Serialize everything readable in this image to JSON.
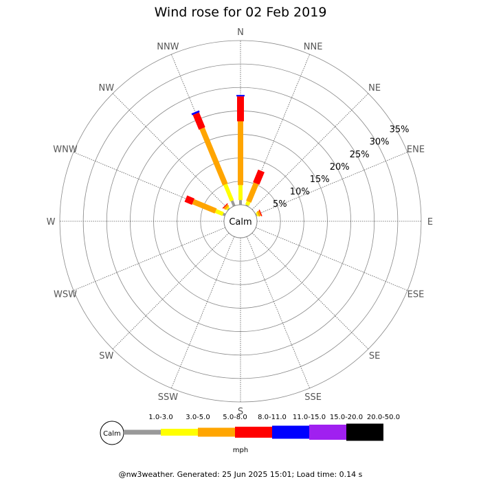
{
  "chart_data": {
    "type": "wind-rose",
    "title": "Wind rose for 02 Feb 2019",
    "directions": [
      "N",
      "NNE",
      "NE",
      "ENE",
      "E",
      "ESE",
      "SE",
      "SSE",
      "S",
      "SSW",
      "SW",
      "WSW",
      "W",
      "WNW",
      "NW",
      "NNW"
    ],
    "radial_ticks": [
      "5%",
      "10%",
      "15%",
      "20%",
      "25%",
      "30%",
      "35%"
    ],
    "radial_max": 35,
    "calm_label": "Calm",
    "bins": [
      {
        "range": "1.0-3.0",
        "color": "#999999"
      },
      {
        "range": "3.0-5.0",
        "color": "#ffff00"
      },
      {
        "range": "5.0-8.0",
        "color": "#ffa500"
      },
      {
        "range": "8.0-11.0",
        "color": "#ff0000"
      },
      {
        "range": "11.0-15.0",
        "color": "#0000ff"
      },
      {
        "range": "15.0-20.0",
        "color": "#a020f0"
      },
      {
        "range": "20.0-50.0",
        "color": "#000000"
      }
    ],
    "units": "mph",
    "series": [
      {
        "direction": "N",
        "values": [
          1.0,
          3.2,
          13.6,
          5.3,
          0.3,
          0,
          0
        ]
      },
      {
        "direction": "NNE",
        "values": [
          0.2,
          0.8,
          4.2,
          2.9,
          0,
          0,
          0
        ]
      },
      {
        "direction": "ENE",
        "values": [
          0.2,
          0.3,
          0.5,
          0.2,
          0,
          0,
          0
        ]
      },
      {
        "direction": "WNW",
        "values": [
          0.5,
          1.7,
          5.2,
          1.7,
          0,
          0,
          0
        ]
      },
      {
        "direction": "NW",
        "values": [
          0.2,
          0.3,
          0.5,
          0.2,
          0,
          0,
          0
        ]
      },
      {
        "direction": "NNW",
        "values": [
          1.2,
          3.8,
          12.9,
          3.4,
          0.4,
          0,
          0
        ]
      }
    ]
  },
  "footer": "@nw3weather. Generated: 25 Jun 2025 15:01; Load time: 0.14 s"
}
